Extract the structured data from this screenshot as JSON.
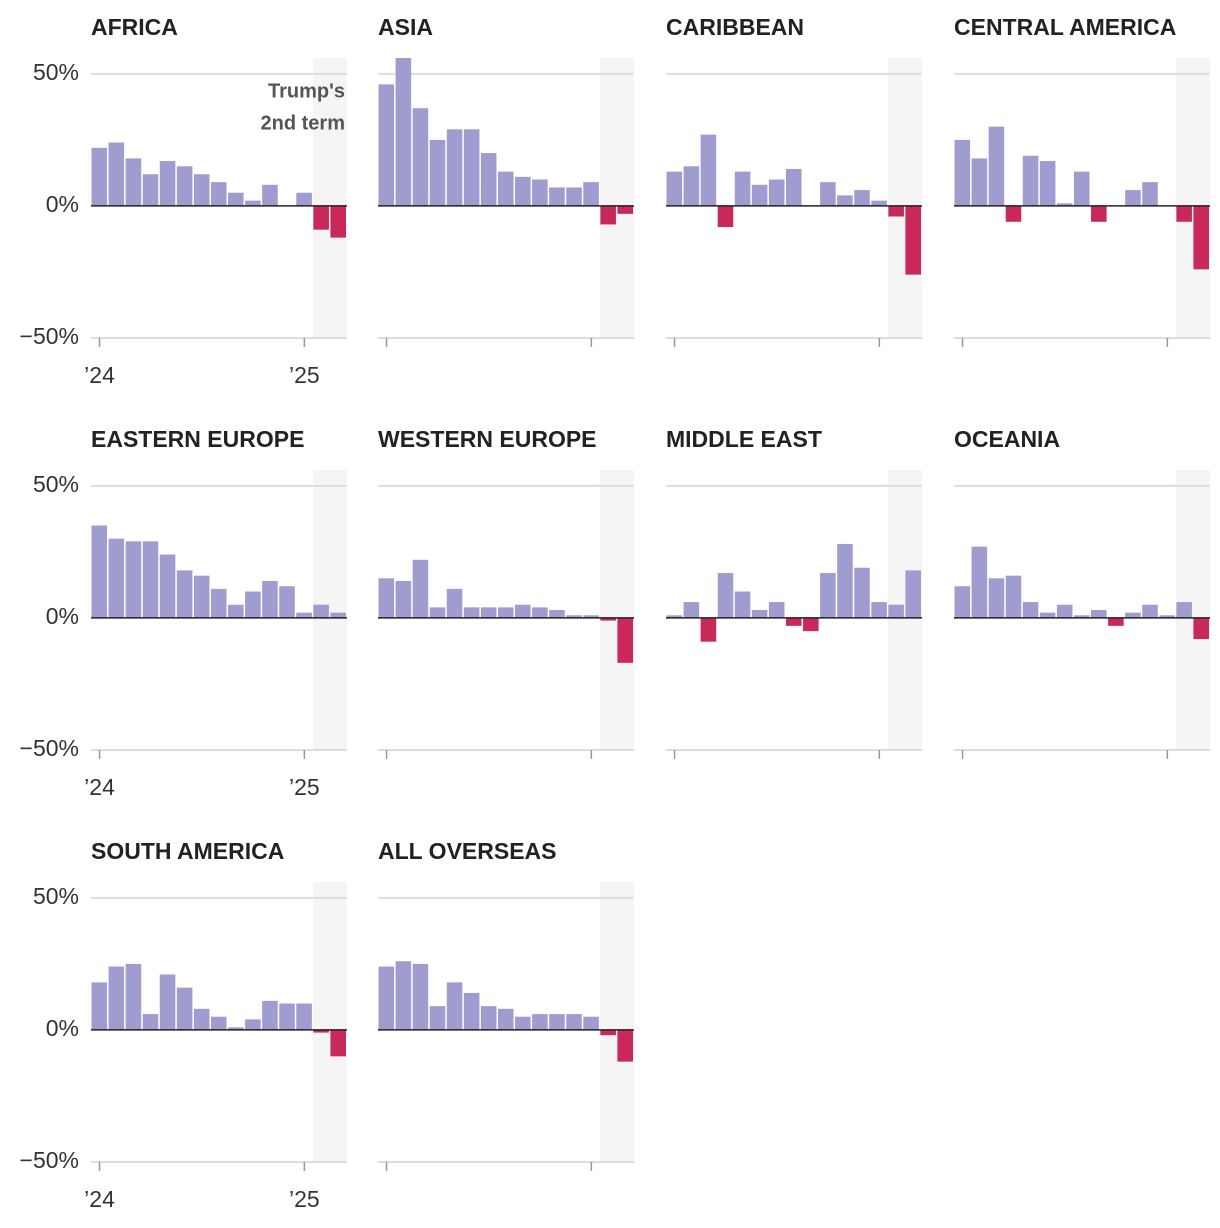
{
  "chart_data": [
    {
      "type": "bar",
      "title": "AFRICA",
      "color": "#a09cd0",
      "negative_color": "#c8285a",
      "categories": [
        "’24",
        null,
        null,
        null,
        null,
        null,
        null,
        null,
        null,
        null,
        null,
        null,
        "’25",
        null,
        null
      ],
      "values": [
        22,
        24,
        18,
        12,
        17,
        15,
        12,
        9,
        5,
        2,
        8,
        0,
        5,
        -9,
        -12
      ],
      "ylim": [
        -50,
        56
      ],
      "yticks": [
        {
          "value": -50,
          "label": "−50%"
        },
        {
          "value": 0,
          "label": "0%"
        },
        {
          "value": 50,
          "label": "50%"
        }
      ],
      "annotation": [
        "Trump's",
        "2nd term"
      ]
    },
    {
      "type": "bar",
      "title": "ASIA",
      "color": "#a09cd0",
      "negative_color": "#c8285a",
      "values": [
        46,
        56,
        37,
        25,
        29,
        29,
        20,
        13,
        11,
        10,
        7,
        7,
        9,
        -7,
        -3
      ],
      "ylim": [
        -50,
        56
      ]
    },
    {
      "type": "bar",
      "title": "CARIBBEAN",
      "color": "#a09cd0",
      "negative_color": "#c8285a",
      "values": [
        13,
        15,
        27,
        -8,
        13,
        8,
        10,
        14,
        0,
        9,
        4,
        6,
        2,
        -4,
        -26
      ],
      "ylim": [
        -50,
        56
      ]
    },
    {
      "type": "bar",
      "title": "CENTRAL AMERICA",
      "color": "#a09cd0",
      "negative_color": "#c8285a",
      "values": [
        25,
        18,
        30,
        -6,
        19,
        17,
        1,
        13,
        -6,
        0,
        6,
        9,
        0,
        -6,
        -24
      ],
      "ylim": [
        -50,
        56
      ]
    },
    {
      "type": "bar",
      "title": "EASTERN EUROPE",
      "color": "#a09cd0",
      "negative_color": "#c8285a",
      "categories": [
        "’24",
        null,
        null,
        null,
        null,
        null,
        null,
        null,
        null,
        null,
        null,
        null,
        "’25",
        null,
        null
      ],
      "values": [
        35,
        30,
        29,
        29,
        24,
        18,
        16,
        11,
        5,
        10,
        14,
        12,
        2,
        5,
        2
      ],
      "ylim": [
        -50,
        56
      ],
      "yticks": [
        {
          "value": -50,
          "label": "−50%"
        },
        {
          "value": 0,
          "label": "0%"
        },
        {
          "value": 50,
          "label": "50%"
        }
      ]
    },
    {
      "type": "bar",
      "title": "WESTERN EUROPE",
      "color": "#a09cd0",
      "negative_color": "#c8285a",
      "values": [
        15,
        14,
        22,
        4,
        11,
        4,
        4,
        4,
        5,
        4,
        3,
        1,
        1,
        -1,
        -17
      ],
      "ylim": [
        -50,
        56
      ]
    },
    {
      "type": "bar",
      "title": "MIDDLE EAST",
      "color": "#a09cd0",
      "negative_color": "#c8285a",
      "values": [
        1,
        6,
        -9,
        17,
        10,
        3,
        6,
        -3,
        -5,
        17,
        28,
        19,
        6,
        5,
        18
      ],
      "ylim": [
        -50,
        56
      ]
    },
    {
      "type": "bar",
      "title": "OCEANIA",
      "color": "#a09cd0",
      "negative_color": "#c8285a",
      "values": [
        12,
        27,
        15,
        16,
        6,
        2,
        5,
        1,
        3,
        -3,
        2,
        5,
        1,
        6,
        -8
      ],
      "ylim": [
        -50,
        56
      ]
    },
    {
      "type": "bar",
      "title": "SOUTH AMERICA",
      "color": "#a09cd0",
      "negative_color": "#c8285a",
      "categories": [
        "’24",
        null,
        null,
        null,
        null,
        null,
        null,
        null,
        null,
        null,
        null,
        null,
        "’25",
        null,
        null
      ],
      "values": [
        18,
        24,
        25,
        6,
        21,
        16,
        8,
        5,
        1,
        4,
        11,
        10,
        10,
        -1,
        -10
      ],
      "ylim": [
        -50,
        56
      ],
      "yticks": [
        {
          "value": -50,
          "label": "−50%"
        },
        {
          "value": 0,
          "label": "0%"
        },
        {
          "value": 50,
          "label": "50%"
        }
      ]
    },
    {
      "type": "bar",
      "title": "ALL OVERSEAS",
      "color": "#a09cd0",
      "negative_color": "#c8285a",
      "values": [
        24,
        26,
        25,
        9,
        18,
        14,
        9,
        8,
        5,
        6,
        6,
        6,
        5,
        -2,
        -12
      ],
      "ylim": [
        -50,
        56
      ]
    }
  ]
}
